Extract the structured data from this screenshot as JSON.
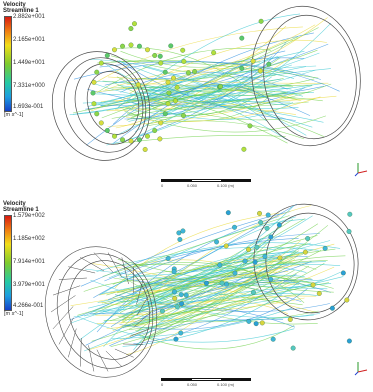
{
  "panels": [
    {
      "legend": {
        "title_line1": "Velocity",
        "title_line2": "Streamline 1",
        "ticks": [
          "2.882e+001",
          "2.165e+001",
          "1.449e+001",
          "7.331e+000",
          "1.693e-001"
        ],
        "unit": "[m s^-1]"
      },
      "scale": {
        "labels": [
          "0",
          "0.050",
          "0.100 (m)"
        ]
      }
    },
    {
      "legend": {
        "title_line1": "Velocity",
        "title_line2": "Streamline 1",
        "ticks": [
          "1.579e+002",
          "1.185e+002",
          "7.914e+001",
          "3.979e+001",
          "4.266e-001"
        ],
        "unit": "[m s^-1]"
      },
      "scale": {
        "labels": [
          "0",
          "0.050",
          "0.100 (m)"
        ]
      }
    }
  ],
  "colors": {
    "stream_cyan": "#38c7d2",
    "stream_green": "#6fd04a",
    "stream_yellow": "#e9d93a",
    "stream_blue": "#2d8fe0",
    "wire": "#4a4a4a"
  }
}
